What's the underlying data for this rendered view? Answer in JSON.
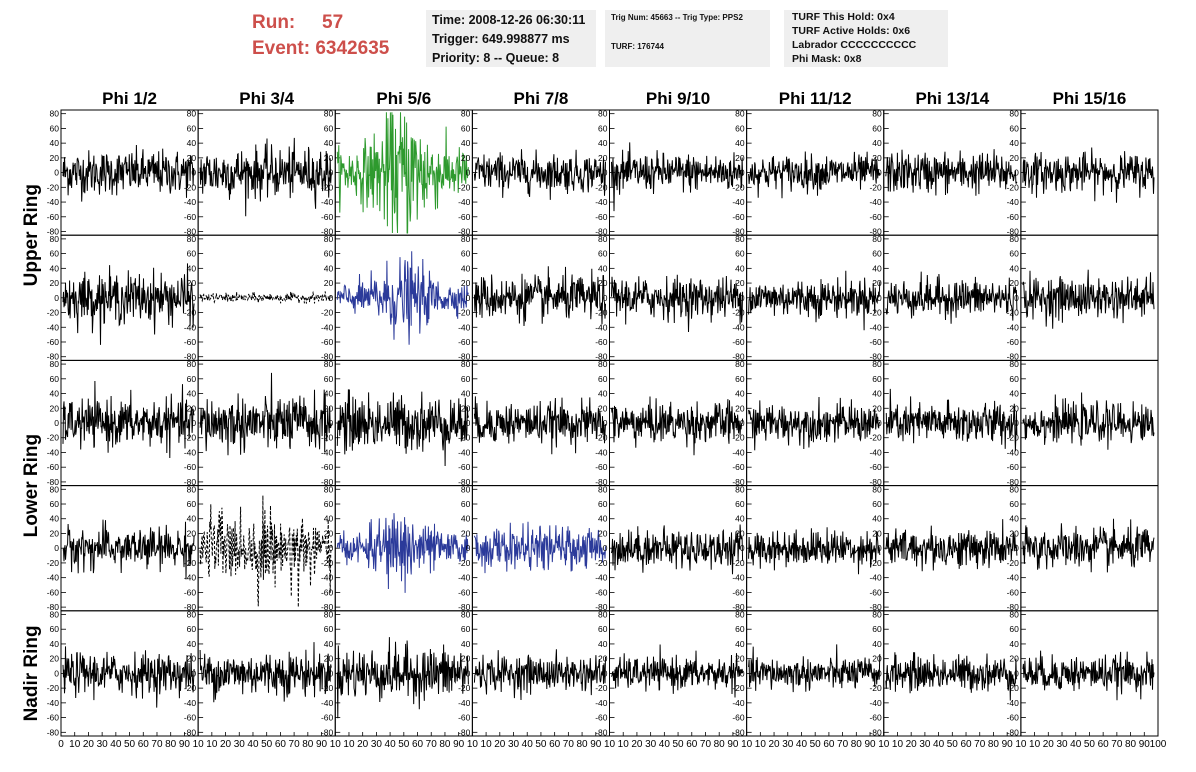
{
  "header": {
    "run_label": "Run:",
    "run_value": "57",
    "event_label": "Event:",
    "event_value": "6342635",
    "time": "Time: 2008-12-26 06:30:11",
    "trigger": "Trigger: 649.998877 ms",
    "priority_queue": "Priority: 8 -- Queue: 8",
    "trig_num_type": "Trig Num: 45663 -- Trig Type: PPS2",
    "turf": "TURF: 176744",
    "turf_this_hold": "TURF This Hold: 0x4",
    "turf_active_holds": "TURF Active Holds: 0x6",
    "labrador": "Labrador CCCCCCCCCC",
    "phi_mask": "Phi Mask: 0x8"
  },
  "colors": {
    "run_text": "#cd4f4b",
    "info_bg": "#efefef",
    "trace_default": "#000000",
    "trace_green": "#2e9a2e",
    "trace_blue": "#2b3a9a"
  },
  "chart_data": {
    "type": "line",
    "description_layout": "5 rows x 8 columns grid of waveform panels",
    "column_labels": [
      "Phi 1/2",
      "Phi 3/4",
      "Phi 5/6",
      "Phi 7/8",
      "Phi 9/10",
      "Phi 11/12",
      "Phi 13/14",
      "Phi 15/16"
    ],
    "row_labels": [
      "Upper Ring",
      "Lower Ring",
      "Nadir Ring"
    ],
    "ylim": [
      -85,
      85
    ],
    "y_ticks": [
      80,
      60,
      40,
      20,
      0,
      -20,
      -40,
      -60,
      -80
    ],
    "xlim": [
      0,
      100
    ],
    "x_ticks": [
      0,
      10,
      20,
      30,
      40,
      50,
      60,
      70,
      80,
      90,
      100
    ],
    "x_tick_labels_first": "0 10 20 30 40 50 60 70 80 90 10",
    "x_tick_labels_mid": "10 20 30 40 50 60 70 80 90 10",
    "x_tick_labels_last": "10 20 30 40 50 60 70 80 90 100",
    "panels": [
      [
        {
          "amp": 15,
          "style": "solid",
          "color": "black"
        },
        {
          "amp": 17,
          "style": "solid",
          "color": "black"
        },
        {
          "amp": 35,
          "style": "solid",
          "color": "green"
        },
        {
          "amp": 13,
          "style": "solid",
          "color": "black"
        },
        {
          "amp": 13,
          "style": "solid",
          "color": "black"
        },
        {
          "amp": 12,
          "style": "solid",
          "color": "black"
        },
        {
          "amp": 14,
          "style": "solid",
          "color": "black"
        },
        {
          "amp": 13,
          "style": "solid",
          "color": "black"
        }
      ],
      [
        {
          "amp": 17,
          "style": "solid",
          "color": "black"
        },
        {
          "amp": 3,
          "style": "dashed",
          "color": "black"
        },
        {
          "amp": 20,
          "style": "solid",
          "color": "blue"
        },
        {
          "amp": 15,
          "style": "solid",
          "color": "black"
        },
        {
          "amp": 14,
          "style": "solid",
          "color": "black"
        },
        {
          "amp": 13,
          "style": "solid",
          "color": "black"
        },
        {
          "amp": 13,
          "style": "solid",
          "color": "black"
        },
        {
          "amp": 14,
          "style": "solid",
          "color": "black"
        }
      ],
      [
        {
          "amp": 16,
          "style": "solid",
          "color": "black"
        },
        {
          "amp": 19,
          "style": "solid",
          "color": "black"
        },
        {
          "amp": 19,
          "style": "solid",
          "color": "black"
        },
        {
          "amp": 14,
          "style": "solid",
          "color": "black"
        },
        {
          "amp": 14,
          "style": "solid",
          "color": "black"
        },
        {
          "amp": 13,
          "style": "solid",
          "color": "black"
        },
        {
          "amp": 14,
          "style": "solid",
          "color": "black"
        },
        {
          "amp": 13,
          "style": "solid",
          "color": "black"
        }
      ],
      [
        {
          "amp": 14,
          "style": "solid",
          "color": "black"
        },
        {
          "amp": 25,
          "style": "dashed",
          "color": "black"
        },
        {
          "amp": 20,
          "style": "solid",
          "color": "blue"
        },
        {
          "amp": 14,
          "style": "solid",
          "color": "blue"
        },
        {
          "amp": 13,
          "style": "solid",
          "color": "black"
        },
        {
          "amp": 12,
          "style": "solid",
          "color": "black"
        },
        {
          "amp": 13,
          "style": "solid",
          "color": "black"
        },
        {
          "amp": 14,
          "style": "solid",
          "color": "black"
        }
      ],
      [
        {
          "amp": 14,
          "style": "solid",
          "color": "black"
        },
        {
          "amp": 15,
          "style": "solid",
          "color": "black"
        },
        {
          "amp": 18,
          "style": "solid",
          "color": "black"
        },
        {
          "amp": 12,
          "style": "solid",
          "color": "black"
        },
        {
          "amp": 11,
          "style": "solid",
          "color": "black"
        },
        {
          "amp": 11,
          "style": "solid",
          "color": "black"
        },
        {
          "amp": 12,
          "style": "solid",
          "color": "black"
        },
        {
          "amp": 12,
          "style": "solid",
          "color": "black"
        }
      ]
    ]
  }
}
